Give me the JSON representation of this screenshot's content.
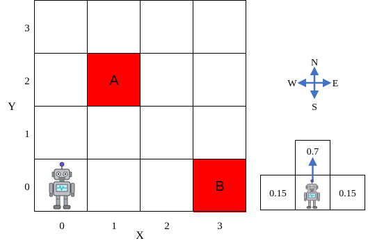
{
  "grid": {
    "columns": 4,
    "rows": 4,
    "x_tick_labels": [
      "0",
      "1",
      "2",
      "3"
    ],
    "y_tick_labels": [
      "0",
      "1",
      "2",
      "3"
    ],
    "x_axis_label": "X",
    "y_axis_label": "Y",
    "special_cells": [
      {
        "label": "A",
        "x": 1,
        "y": 2,
        "fill": "#ff0000"
      },
      {
        "label": "B",
        "x": 3,
        "y": 0,
        "fill": "#ff0000"
      }
    ],
    "robot_cell": {
      "x": 0,
      "y": 0
    }
  },
  "compass": {
    "north": "N",
    "south": "S",
    "east": "E",
    "west": "W",
    "arrow_color": "#4472c4"
  },
  "transition": {
    "forward_prob": "0.7",
    "left_prob": "0.15",
    "right_prob": "0.15",
    "arrow_color": "#4472c4"
  }
}
